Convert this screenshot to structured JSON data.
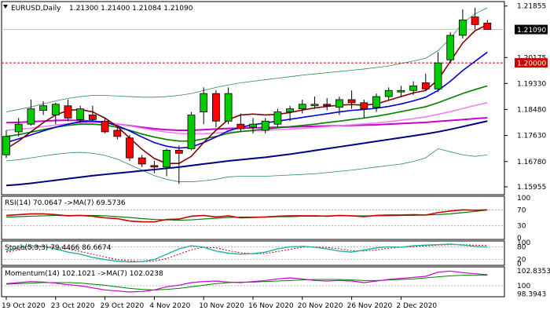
{
  "header": {
    "symbol": "EURUSD,Daily",
    "ohlc": "1.21300 1.21400 1.21084 1.21090"
  },
  "main": {
    "price_labels": [
      "1.21855",
      "1.21090",
      "1.20175",
      "1.20000",
      "1.19330",
      "1.18480",
      "1.17630",
      "1.16780",
      "1.15955"
    ],
    "current_price": "1.21090",
    "level_price": "1.20000",
    "colors": {
      "bull_candle": "#00cc00",
      "bear_candle": "#ff0000",
      "level_line": "#cc0000",
      "ma_fast": "#800000",
      "ma_mid": "#0000cc",
      "ma_green": "#008000",
      "ma_violet": "#ee82ee",
      "ma_magenta": "#cc00cc",
      "ma_navy": "#000080",
      "bands": "#2e8b57"
    }
  },
  "rsi": {
    "label": "RSI(14) 70.0647 ->MA(7) 69.5736",
    "levels": [
      "100",
      "70",
      "30",
      "0"
    ]
  },
  "stoch": {
    "label": "Stoch(5,3,3) 79.4466 86.6674",
    "levels": [
      "100",
      "80",
      "20",
      "0"
    ]
  },
  "momentum": {
    "label": "Momentum(14) 102.1021 ->MA(7) 102.0238",
    "levels": [
      "102.8353",
      "100",
      "98.3943"
    ]
  },
  "x_axis": {
    "dates": [
      "19 Oct 2020",
      "23 Oct 2020",
      "29 Oct 2020",
      "4 Nov 2020",
      "10 Nov 2020",
      "16 Nov 2020",
      "20 Nov 2020",
      "26 Nov 2020",
      "2 Dec 2020"
    ]
  },
  "chart_data": {
    "type": "candlestick",
    "ylim": [
      1.1575,
      1.2195
    ],
    "candles": [
      {
        "o": 1.17,
        "h": 1.178,
        "l": 1.169,
        "c": 1.176
      },
      {
        "o": 1.1775,
        "h": 1.182,
        "l": 1.176,
        "c": 1.18
      },
      {
        "o": 1.18,
        "h": 1.188,
        "l": 1.1795,
        "c": 1.185
      },
      {
        "o": 1.1845,
        "h": 1.1875,
        "l": 1.183,
        "c": 1.186
      },
      {
        "o": 1.183,
        "h": 1.187,
        "l": 1.18,
        "c": 1.1865
      },
      {
        "o": 1.186,
        "h": 1.188,
        "l": 1.181,
        "c": 1.182
      },
      {
        "o": 1.1815,
        "h": 1.186,
        "l": 1.1805,
        "c": 1.185
      },
      {
        "o": 1.183,
        "h": 1.186,
        "l": 1.181,
        "c": 1.1815
      },
      {
        "o": 1.181,
        "h": 1.182,
        "l": 1.177,
        "c": 1.1775
      },
      {
        "o": 1.178,
        "h": 1.179,
        "l": 1.175,
        "c": 1.176
      },
      {
        "o": 1.1755,
        "h": 1.1765,
        "l": 1.168,
        "c": 1.169
      },
      {
        "o": 1.169,
        "h": 1.17,
        "l": 1.166,
        "c": 1.167
      },
      {
        "o": 1.1665,
        "h": 1.168,
        "l": 1.164,
        "c": 1.166
      },
      {
        "o": 1.166,
        "h": 1.172,
        "l": 1.163,
        "c": 1.1715
      },
      {
        "o": 1.1715,
        "h": 1.173,
        "l": 1.1605,
        "c": 1.1705
      },
      {
        "o": 1.172,
        "h": 1.184,
        "l": 1.1715,
        "c": 1.183
      },
      {
        "o": 1.184,
        "h": 1.192,
        "l": 1.18,
        "c": 1.19
      },
      {
        "o": 1.19,
        "h": 1.191,
        "l": 1.179,
        "c": 1.181
      },
      {
        "o": 1.181,
        "h": 1.192,
        "l": 1.18,
        "c": 1.19
      },
      {
        "o": 1.18,
        "h": 1.1835,
        "l": 1.1775,
        "c": 1.1785
      },
      {
        "o": 1.179,
        "h": 1.182,
        "l": 1.177,
        "c": 1.18
      },
      {
        "o": 1.178,
        "h": 1.182,
        "l": 1.177,
        "c": 1.181
      },
      {
        "o": 1.18,
        "h": 1.185,
        "l": 1.179,
        "c": 1.184
      },
      {
        "o": 1.184,
        "h": 1.186,
        "l": 1.181,
        "c": 1.185
      },
      {
        "o": 1.185,
        "h": 1.188,
        "l": 1.1835,
        "c": 1.1865
      },
      {
        "o": 1.186,
        "h": 1.189,
        "l": 1.185,
        "c": 1.1865
      },
      {
        "o": 1.1865,
        "h": 1.1885,
        "l": 1.1845,
        "c": 1.186
      },
      {
        "o": 1.1855,
        "h": 1.189,
        "l": 1.183,
        "c": 1.188
      },
      {
        "o": 1.188,
        "h": 1.191,
        "l": 1.185,
        "c": 1.187
      },
      {
        "o": 1.187,
        "h": 1.188,
        "l": 1.182,
        "c": 1.185
      },
      {
        "o": 1.1855,
        "h": 1.19,
        "l": 1.184,
        "c": 1.189
      },
      {
        "o": 1.189,
        "h": 1.192,
        "l": 1.188,
        "c": 1.191
      },
      {
        "o": 1.1905,
        "h": 1.1925,
        "l": 1.189,
        "c": 1.191
      },
      {
        "o": 1.191,
        "h": 1.194,
        "l": 1.1895,
        "c": 1.1925
      },
      {
        "o": 1.1935,
        "h": 1.1965,
        "l": 1.191,
        "c": 1.1915
      },
      {
        "o": 1.1915,
        "h": 1.2035,
        "l": 1.1905,
        "c": 1.2
      },
      {
        "o": 1.201,
        "h": 1.21,
        "l": 1.2,
        "c": 1.209
      },
      {
        "o": 1.209,
        "h": 1.2175,
        "l": 1.208,
        "c": 1.214
      },
      {
        "o": 1.215,
        "h": 1.218,
        "l": 1.211,
        "c": 1.2125
      },
      {
        "o": 1.213,
        "h": 1.214,
        "l": 1.2108,
        "c": 1.2109
      }
    ],
    "ma_series": [
      {
        "key": "ma_navy",
        "values": [
          1.16,
          1.1603,
          1.1607,
          1.1612,
          1.1617,
          1.1622,
          1.1627,
          1.1632,
          1.1636,
          1.164,
          1.1644,
          1.1648,
          1.1652,
          1.1656,
          1.166,
          1.1665,
          1.167,
          1.1675,
          1.168,
          1.1684,
          1.1688,
          1.1692,
          1.1697,
          1.1702,
          1.1708,
          1.1714,
          1.172,
          1.1726,
          1.1732,
          1.1738,
          1.1744,
          1.175,
          1.1756,
          1.1762,
          1.1768,
          1.1775,
          1.1783,
          1.1792,
          1.1801,
          1.181
        ]
      },
      {
        "key": "ma_magenta",
        "values": [
          1.1805,
          1.1806,
          1.1808,
          1.181,
          1.1812,
          1.1813,
          1.1812,
          1.181,
          1.1806,
          1.18,
          1.1795,
          1.179,
          1.1785,
          1.1782,
          1.178,
          1.178,
          1.1782,
          1.1784,
          1.1786,
          1.1787,
          1.1788,
          1.1789,
          1.179,
          1.1791,
          1.1792,
          1.1793,
          1.1794,
          1.1795,
          1.1796,
          1.1797,
          1.1798,
          1.18,
          1.1802,
          1.1804,
          1.1806,
          1.1809,
          1.1812,
          1.1815,
          1.1818,
          1.1821
        ]
      },
      {
        "key": "ma_violet",
        "values": [
          1.178,
          1.1783,
          1.1787,
          1.1792,
          1.1797,
          1.1801,
          1.1804,
          1.1805,
          1.1804,
          1.18,
          1.1794,
          1.1787,
          1.178,
          1.1774,
          1.177,
          1.1768,
          1.1769,
          1.1771,
          1.1774,
          1.1776,
          1.1778,
          1.178,
          1.1782,
          1.1784,
          1.1786,
          1.1789,
          1.1792,
          1.1795,
          1.1798,
          1.1801,
          1.1804,
          1.1808,
          1.1813,
          1.1818,
          1.1824,
          1.1832,
          1.1841,
          1.1851,
          1.1861,
          1.187
        ]
      },
      {
        "key": "ma_green",
        "values": [
          1.176,
          1.1766,
          1.1774,
          1.1782,
          1.179,
          1.1796,
          1.18,
          1.18,
          1.1797,
          1.179,
          1.178,
          1.1768,
          1.1758,
          1.175,
          1.1745,
          1.1745,
          1.1752,
          1.176,
          1.177,
          1.1776,
          1.178,
          1.1784,
          1.1788,
          1.1792,
          1.1796,
          1.18,
          1.1805,
          1.181,
          1.1815,
          1.182,
          1.1826,
          1.1833,
          1.1841,
          1.1849,
          1.1857,
          1.187,
          1.1885,
          1.19,
          1.1913,
          1.1925
        ]
      },
      {
        "key": "ma_navy_fast",
        "color": "#0000cc",
        "values": [
          1.174,
          1.1752,
          1.1765,
          1.1778,
          1.179,
          1.18,
          1.1808,
          1.181,
          1.1806,
          1.1795,
          1.1778,
          1.1758,
          1.174,
          1.1728,
          1.1722,
          1.1725,
          1.174,
          1.1758,
          1.1778,
          1.179,
          1.1798,
          1.1804,
          1.181,
          1.1816,
          1.1822,
          1.1828,
          1.1834,
          1.184,
          1.1845,
          1.1848,
          1.1852,
          1.1858,
          1.1866,
          1.1876,
          1.1888,
          1.191,
          1.194,
          1.1975,
          1.2005,
          1.2035
        ]
      },
      {
        "key": "ma_fast",
        "values": [
          1.172,
          1.1745,
          1.1775,
          1.1805,
          1.183,
          1.1845,
          1.1848,
          1.184,
          1.182,
          1.1792,
          1.1755,
          1.1718,
          1.1688,
          1.1672,
          1.1672,
          1.1695,
          1.174,
          1.178,
          1.1815,
          1.183,
          1.1833,
          1.183,
          1.1832,
          1.1838,
          1.1846,
          1.1853,
          1.1858,
          1.1862,
          1.1864,
          1.1862,
          1.1866,
          1.1878,
          1.189,
          1.1902,
          1.191,
          1.1945,
          1.2005,
          1.2065,
          1.2105,
          1.2125
        ]
      }
    ],
    "bands": {
      "upper": [
        1.184,
        1.1848,
        1.1856,
        1.1866,
        1.1876,
        1.1884,
        1.189,
        1.1894,
        1.1894,
        1.1892,
        1.189,
        1.1888,
        1.1888,
        1.189,
        1.1894,
        1.19,
        1.191,
        1.192,
        1.1928,
        1.1935,
        1.194,
        1.1945,
        1.195,
        1.1955,
        1.196,
        1.1964,
        1.1968,
        1.1972,
        1.1976,
        1.198,
        1.1985,
        1.199,
        1.1998,
        1.2006,
        1.2015,
        1.204,
        1.208,
        1.213,
        1.216,
        1.218
      ],
      "middle": [
        1.176,
        1.1766,
        1.1774,
        1.1782,
        1.179,
        1.1796,
        1.18,
        1.18,
        1.1797,
        1.179,
        1.178,
        1.1768,
        1.1758,
        1.175,
        1.1745,
        1.1745,
        1.1752,
        1.176,
        1.177,
        1.1776,
        1.178,
        1.1784,
        1.1788,
        1.1792,
        1.1796,
        1.18,
        1.1805,
        1.181,
        1.1815,
        1.182,
        1.1826,
        1.1833,
        1.1841,
        1.1849,
        1.1857,
        1.187,
        1.1885,
        1.19,
        1.1913,
        1.1925
      ],
      "lower": [
        1.168,
        1.1684,
        1.169,
        1.1696,
        1.1702,
        1.1706,
        1.1708,
        1.1705,
        1.1698,
        1.1686,
        1.1668,
        1.165,
        1.1632,
        1.162,
        1.1612,
        1.1612,
        1.1615,
        1.162,
        1.1628,
        1.163,
        1.163,
        1.163,
        1.1632,
        1.1634,
        1.1636,
        1.1638,
        1.1642,
        1.1646,
        1.165,
        1.1655,
        1.166,
        1.1665,
        1.167,
        1.1678,
        1.169,
        1.172,
        1.171,
        1.17,
        1.1695,
        1.17
      ]
    },
    "rsi": {
      "ylim": [
        0,
        100
      ],
      "rsi": [
        56,
        58,
        60,
        60,
        58,
        55,
        56,
        54,
        50,
        48,
        42,
        40,
        40,
        46,
        47,
        54,
        56,
        52,
        55,
        50,
        51,
        52,
        54,
        55,
        55,
        55,
        54,
        56,
        55,
        53,
        56,
        57,
        57,
        58,
        57,
        63,
        67,
        70,
        69,
        70
      ],
      "ma": [
        52,
        53,
        54,
        55,
        56,
        56,
        56,
        56,
        55,
        53,
        51,
        48,
        46,
        45,
        44,
        45,
        47,
        49,
        51,
        52,
        52,
        52,
        53,
        53,
        54,
        54,
        55,
        55,
        55,
        55,
        55,
        55,
        56,
        56,
        57,
        58,
        60,
        63,
        66,
        69.6
      ]
    },
    "stoch": {
      "ylim": [
        0,
        100
      ],
      "k": [
        60,
        75,
        85,
        82,
        70,
        55,
        45,
        30,
        20,
        12,
        8,
        10,
        20,
        45,
        70,
        85,
        78,
        60,
        50,
        45,
        48,
        55,
        70,
        80,
        82,
        78,
        70,
        60,
        55,
        65,
        75,
        80,
        78,
        85,
        88,
        90,
        93,
        88,
        82,
        79
      ],
      "d": [
        55,
        65,
        75,
        80,
        78,
        70,
        58,
        45,
        32,
        20,
        14,
        10,
        12,
        25,
        45,
        66,
        78,
        75,
        62,
        52,
        47,
        48,
        58,
        68,
        78,
        80,
        77,
        70,
        62,
        60,
        65,
        73,
        78,
        81,
        84,
        88,
        90,
        90,
        88,
        86.7
      ]
    },
    "momentum": {
      "ylim": [
        98.2,
        103.3
      ],
      "mom": [
        100.4,
        100.6,
        100.8,
        100.7,
        100.5,
        100.2,
        100.0,
        99.6,
        99.2,
        99.0,
        98.8,
        98.9,
        99.2,
        99.8,
        100.1,
        100.6,
        100.8,
        100.9,
        100.7,
        100.6,
        100.8,
        101.0,
        101.3,
        101.5,
        101.3,
        101.0,
        100.9,
        101.0,
        100.9,
        100.6,
        100.9,
        101.2,
        101.4,
        101.6,
        101.8,
        102.6,
        102.8,
        102.5,
        102.3,
        102.1
      ],
      "ma": [
        100.3,
        100.4,
        100.5,
        100.6,
        100.6,
        100.6,
        100.5,
        100.3,
        100.1,
        99.8,
        99.5,
        99.3,
        99.2,
        99.3,
        99.5,
        99.8,
        100.1,
        100.4,
        100.6,
        100.7,
        100.7,
        100.8,
        100.9,
        101.0,
        101.1,
        101.2,
        101.2,
        101.2,
        101.1,
        101.0,
        101.0,
        101.1,
        101.2,
        101.3,
        101.5,
        101.7,
        101.9,
        102.0,
        102.0,
        102.0
      ]
    }
  }
}
